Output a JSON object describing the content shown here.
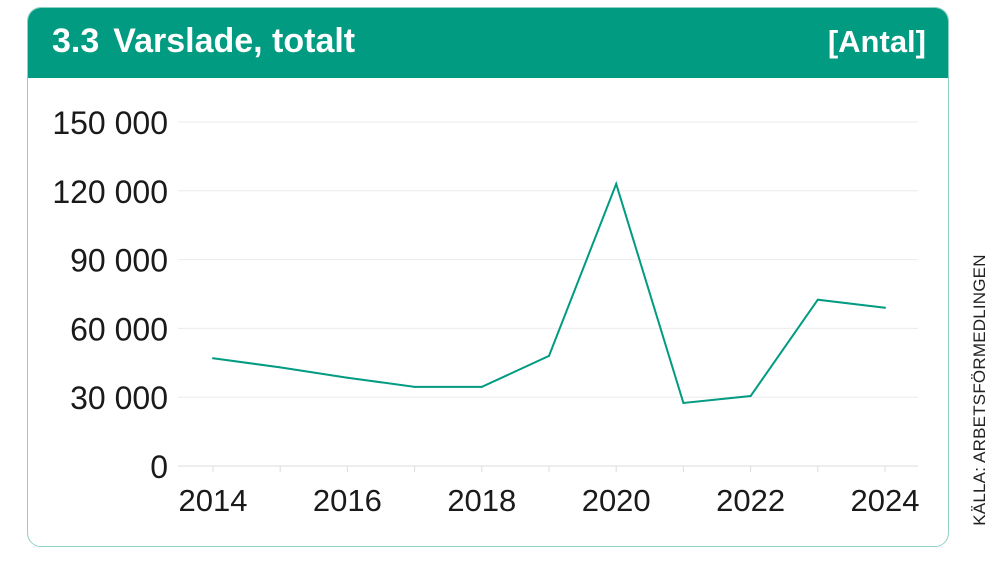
{
  "header": {
    "number": "3.3",
    "title": "Varslade, totalt",
    "unit": "[Antal]"
  },
  "source": "KÄLLA: ARBETSFÖRMEDLINGEN",
  "colors": {
    "header_bg": "#009b80",
    "line": "#009b80",
    "border": "#8fd2c4",
    "grid": "#ececec"
  },
  "chart_data": {
    "type": "line",
    "title": "Varslade, totalt",
    "unit": "[Antal]",
    "x": [
      2014,
      2015,
      2016,
      2017,
      2018,
      2019,
      2020,
      2021,
      2022,
      2023,
      2024
    ],
    "series": [
      {
        "values": [
          47000,
          43000,
          38500,
          34500,
          34500,
          48000,
          123000,
          27500,
          30500,
          72500,
          69000
        ]
      }
    ],
    "yticks": [
      0,
      30000,
      60000,
      90000,
      120000,
      150000
    ],
    "ytick_labels": [
      "0",
      "30 000",
      "60 000",
      "90 000",
      "120 000",
      "150 000"
    ],
    "xticks": [
      2014,
      2016,
      2018,
      2020,
      2022,
      2024
    ],
    "xtick_labels": [
      "2014",
      "2016",
      "2018",
      "2020",
      "2022",
      "2024"
    ],
    "ylim": [
      0,
      150000
    ],
    "xlim": [
      2014,
      2024
    ],
    "grid": true,
    "legend": "none"
  }
}
